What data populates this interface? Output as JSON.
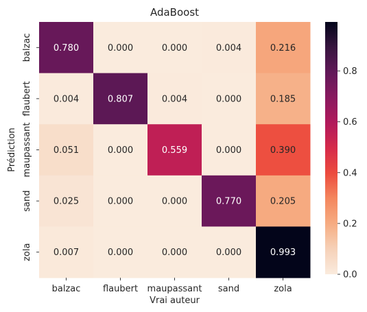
{
  "chart_data": {
    "type": "heatmap",
    "title": "AdaBoost",
    "xlabel": "Vrai auteur",
    "ylabel": "Prédiction",
    "x_categories": [
      "balzac",
      "flaubert",
      "maupassant",
      "sand",
      "zola"
    ],
    "y_categories": [
      "balzac",
      "flaubert",
      "maupassant",
      "sand",
      "zola"
    ],
    "values": [
      [
        0.78,
        0.0,
        0.0,
        0.004,
        0.216
      ],
      [
        0.004,
        0.807,
        0.004,
        0.0,
        0.185
      ],
      [
        0.051,
        0.0,
        0.559,
        0.0,
        0.39
      ],
      [
        0.025,
        0.0,
        0.0,
        0.77,
        0.205
      ],
      [
        0.007,
        0.0,
        0.0,
        0.0,
        0.993
      ]
    ],
    "value_labels": [
      [
        "0.780",
        "0.000",
        "0.000",
        "0.004",
        "0.216"
      ],
      [
        "0.004",
        "0.807",
        "0.004",
        "0.000",
        "0.185"
      ],
      [
        "0.051",
        "0.000",
        "0.559",
        "0.000",
        "0.390"
      ],
      [
        "0.025",
        "0.000",
        "0.000",
        "0.770",
        "0.205"
      ],
      [
        "0.007",
        "0.000",
        "0.000",
        "0.000",
        "0.993"
      ]
    ],
    "colormap": "rocket_r",
    "vmin": 0.0,
    "vmax": 0.993,
    "colorbar_ticks": [
      0.0,
      0.2,
      0.4,
      0.6,
      0.8
    ],
    "colorbar_tick_labels": [
      "0.0",
      "0.2",
      "0.4",
      "0.6",
      "0.8"
    ],
    "grid": false
  }
}
